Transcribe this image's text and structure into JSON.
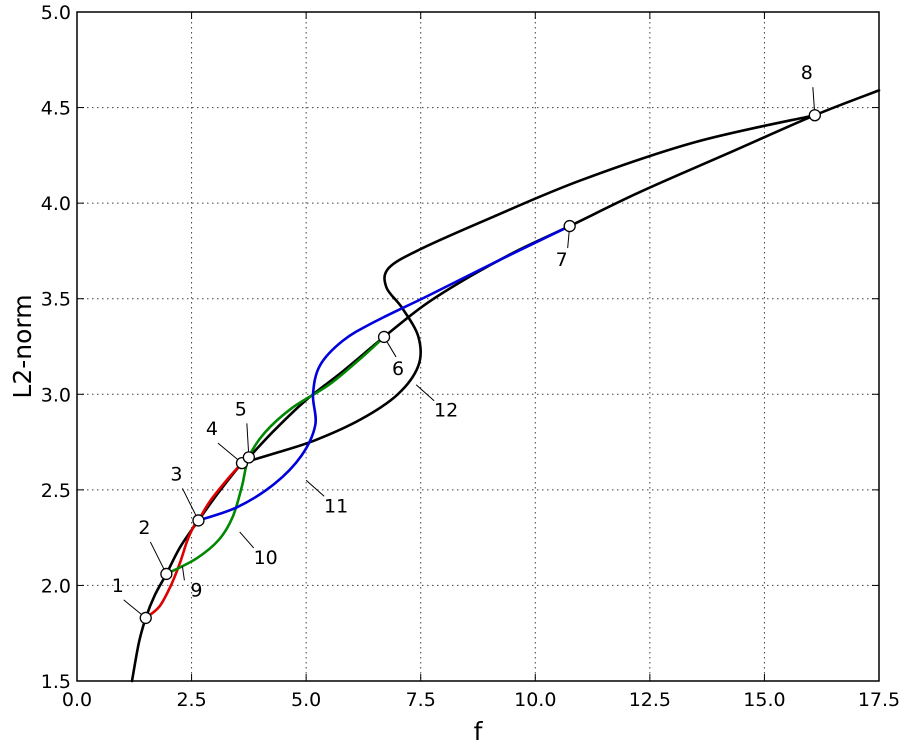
{
  "chart_data": {
    "type": "line",
    "title": "",
    "xlabel": "f",
    "ylabel": "L2-norm",
    "xlim": [
      0,
      17.5
    ],
    "ylim": [
      1.5,
      5.0
    ],
    "grid": true,
    "xticks": [
      0.0,
      2.5,
      5.0,
      7.5,
      10.0,
      12.5,
      15.0,
      17.5
    ],
    "yticks": [
      1.5,
      2.0,
      2.5,
      3.0,
      3.5,
      4.0,
      4.5,
      5.0
    ],
    "xtick_labels": [
      "0.0",
      "2.5",
      "5.0",
      "7.5",
      "10.0",
      "12.5",
      "15.0",
      "17.5"
    ],
    "ytick_labels": [
      "1.5",
      "2.0",
      "2.5",
      "3.0",
      "3.5",
      "4.0",
      "4.5",
      "5.0"
    ],
    "series": [
      {
        "id": "main",
        "label": "",
        "color": "#000000",
        "points": [
          [
            1.2,
            1.5
          ],
          [
            1.35,
            1.7
          ],
          [
            1.5,
            1.83
          ],
          [
            1.7,
            1.95
          ],
          [
            1.95,
            2.06
          ],
          [
            2.25,
            2.2
          ],
          [
            2.65,
            2.34
          ],
          [
            3.1,
            2.49
          ],
          [
            3.6,
            2.64
          ],
          [
            3.75,
            2.67
          ],
          [
            4.3,
            2.81
          ],
          [
            5.0,
            2.97
          ],
          [
            5.8,
            3.12
          ],
          [
            6.7,
            3.3
          ],
          [
            7.6,
            3.47
          ],
          [
            8.6,
            3.62
          ],
          [
            9.6,
            3.75
          ],
          [
            10.75,
            3.88
          ],
          [
            12.3,
            4.06
          ],
          [
            14.2,
            4.26
          ],
          [
            16.1,
            4.46
          ],
          [
            17.5,
            4.59
          ]
        ]
      },
      {
        "id": "12",
        "label": "12",
        "color": "#000000",
        "points": [
          [
            3.6,
            2.64
          ],
          [
            4.3,
            2.69
          ],
          [
            5.2,
            2.76
          ],
          [
            6.2,
            2.87
          ],
          [
            7.0,
            3.0
          ],
          [
            7.45,
            3.15
          ],
          [
            7.45,
            3.3
          ],
          [
            7.1,
            3.45
          ],
          [
            6.75,
            3.56
          ],
          [
            6.8,
            3.66
          ],
          [
            7.5,
            3.76
          ],
          [
            9.0,
            3.92
          ],
          [
            11.0,
            4.12
          ],
          [
            13.5,
            4.32
          ],
          [
            16.1,
            4.46
          ]
        ]
      },
      {
        "id": "9",
        "label": "9",
        "color": "#dd0000",
        "points": [
          [
            1.5,
            1.83
          ],
          [
            1.8,
            1.89
          ],
          [
            2.05,
            2.0
          ],
          [
            2.25,
            2.12
          ],
          [
            2.4,
            2.23
          ],
          [
            2.55,
            2.31
          ],
          [
            2.65,
            2.34
          ],
          [
            2.9,
            2.44
          ],
          [
            3.3,
            2.56
          ],
          [
            3.6,
            2.64
          ]
        ]
      },
      {
        "id": "10",
        "label": "10",
        "color": "#008800",
        "points": [
          [
            1.95,
            2.06
          ],
          [
            2.6,
            2.14
          ],
          [
            3.1,
            2.24
          ],
          [
            3.4,
            2.36
          ],
          [
            3.6,
            2.52
          ],
          [
            3.75,
            2.67
          ],
          [
            4.1,
            2.8
          ],
          [
            4.7,
            2.93
          ],
          [
            5.5,
            3.05
          ],
          [
            6.2,
            3.19
          ],
          [
            6.7,
            3.3
          ]
        ]
      },
      {
        "id": "11",
        "label": "11",
        "color": "#0000dd",
        "points": [
          [
            2.65,
            2.34
          ],
          [
            3.5,
            2.41
          ],
          [
            4.3,
            2.53
          ],
          [
            4.9,
            2.68
          ],
          [
            5.2,
            2.84
          ],
          [
            5.15,
            3.0
          ],
          [
            5.3,
            3.15
          ],
          [
            5.8,
            3.28
          ],
          [
            6.5,
            3.38
          ],
          [
            7.7,
            3.52
          ],
          [
            9.2,
            3.7
          ],
          [
            10.75,
            3.88
          ]
        ]
      }
    ],
    "annotations": [
      {
        "label": "1",
        "x": 1.5,
        "y": 1.83
      },
      {
        "label": "2",
        "x": 1.95,
        "y": 2.06
      },
      {
        "label": "3",
        "x": 2.65,
        "y": 2.34
      },
      {
        "label": "4",
        "x": 3.6,
        "y": 2.64
      },
      {
        "label": "5",
        "x": 3.75,
        "y": 2.67
      },
      {
        "label": "6",
        "x": 6.7,
        "y": 3.3
      },
      {
        "label": "7",
        "x": 10.75,
        "y": 3.88
      },
      {
        "label": "8",
        "x": 16.1,
        "y": 4.46
      }
    ],
    "curve_labels": [
      {
        "label": "9",
        "x": 2.3,
        "y": 2.1
      },
      {
        "label": "10",
        "x": 3.55,
        "y": 2.28
      },
      {
        "label": "11",
        "x": 5.0,
        "y": 2.55
      },
      {
        "label": "12",
        "x": 7.4,
        "y": 3.05
      }
    ]
  }
}
